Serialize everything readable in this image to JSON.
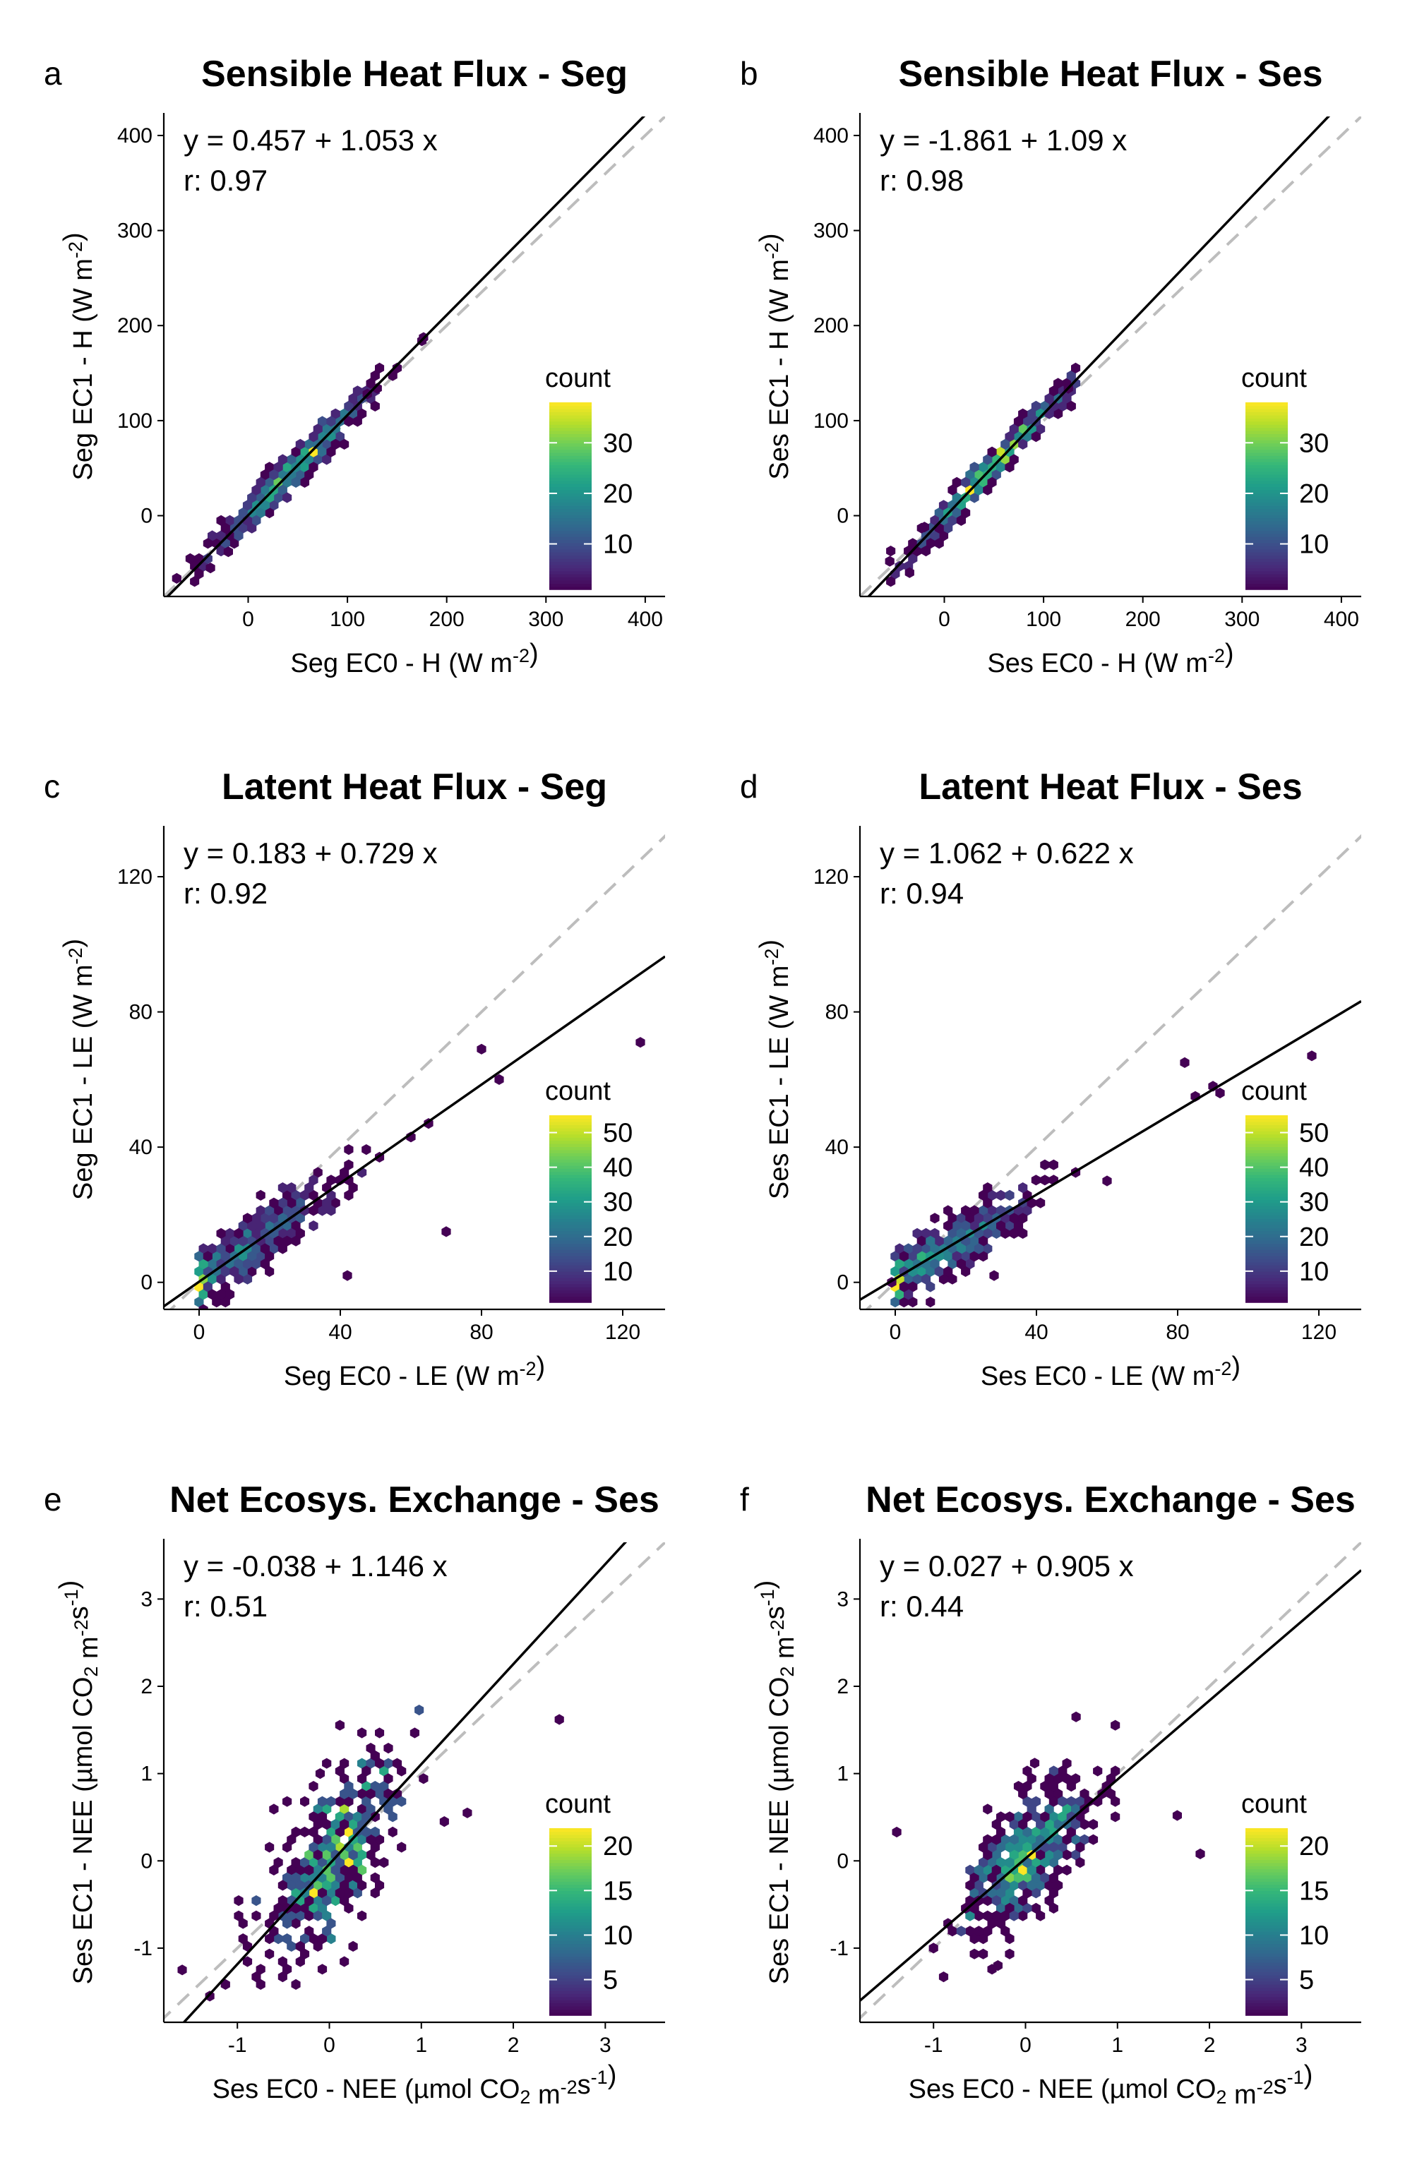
{
  "chart_data": [
    {
      "panel": "a",
      "type": "scatter",
      "title": "Sensible Heat Flux - Seg",
      "xlabel": "Seg EC0 - H (W m-2)",
      "ylabel": "Seg EC1 - H (W m-2)",
      "xlabel_parts": [
        "Seg EC0 - H (W m",
        "-2",
        ")"
      ],
      "ylabel_parts": [
        "Seg EC1 - H (W m",
        "-2",
        ")"
      ],
      "xlim": [
        -85,
        420
      ],
      "ylim": [
        -85,
        420
      ],
      "xticks": [
        0,
        100,
        200,
        300,
        400
      ],
      "yticks": [
        0,
        100,
        200,
        300,
        400
      ],
      "equation": "y =  0.457 + 1.053 x",
      "r_text": "r:  0.97",
      "fit": {
        "intercept": 0.457,
        "slope": 1.053
      },
      "identity_line": true,
      "legend": {
        "title": "count",
        "ticks": [
          10,
          20,
          30
        ],
        "max": 38
      },
      "cloud": {
        "x_center": 45,
        "x_spread": 40,
        "y_noise": 9,
        "x_min": -70,
        "x_max": 175,
        "n": 420,
        "peak": 38
      },
      "points": [
        [
          -72,
          -66
        ],
        [
          -38,
          -55
        ],
        [
          175,
          184
        ],
        [
          -20,
          -38
        ],
        [
          120,
          128
        ],
        [
          130,
          134
        ]
      ]
    },
    {
      "panel": "b",
      "type": "scatter",
      "title": "Sensible Heat Flux - Ses",
      "xlabel": "Ses EC0 - H (W m-2)",
      "ylabel": "Ses EC1 - H (W m-2)",
      "xlabel_parts": [
        "Ses EC0 - H (W m",
        "-2",
        ")"
      ],
      "ylabel_parts": [
        "Ses EC1 - H (W m",
        "-2",
        ")"
      ],
      "xlim": [
        -85,
        420
      ],
      "ylim": [
        -85,
        420
      ],
      "xticks": [
        0,
        100,
        200,
        300,
        400
      ],
      "yticks": [
        0,
        100,
        200,
        300,
        400
      ],
      "equation": "y =  -1.861 + 1.09 x",
      "r_text": "r:  0.98",
      "fit": {
        "intercept": -1.861,
        "slope": 1.09
      },
      "identity_line": true,
      "legend": {
        "title": "count",
        "ticks": [
          10,
          20,
          30
        ],
        "max": 38
      },
      "cloud": {
        "x_center": 45,
        "x_spread": 38,
        "y_noise": 8,
        "x_min": -55,
        "x_max": 130,
        "n": 420,
        "peak": 38
      },
      "points": [
        [
          -55,
          -48
        ],
        [
          -35,
          -60
        ],
        [
          125,
          134
        ],
        [
          -20,
          -12
        ]
      ]
    },
    {
      "panel": "c",
      "type": "scatter",
      "title": "Latent Heat Flux - Seg",
      "xlabel": "Seg EC0 - LE (W m-2)",
      "ylabel": "Seg EC1 - LE (W m-2)",
      "xlabel_parts": [
        "Seg EC0 - LE (W m",
        "-2",
        ")"
      ],
      "ylabel_parts": [
        "Seg EC1 - LE (W m",
        "-2",
        ")"
      ],
      "xlim": [
        -10,
        132
      ],
      "ylim": [
        -8,
        134
      ],
      "xticks": [
        0,
        40,
        80,
        120
      ],
      "yticks": [
        0,
        40,
        80,
        120
      ],
      "equation": "y =  0.183 + 0.729 x",
      "r_text": "r:  0.92",
      "fit": {
        "intercept": 0.183,
        "slope": 0.729
      },
      "identity_line": true,
      "legend": {
        "title": "count",
        "ticks": [
          10,
          20,
          30,
          40,
          50
        ],
        "max": 55
      },
      "cloud": {
        "x_center": 12,
        "x_spread": 14,
        "y_noise": 4.5,
        "x_min": 0,
        "x_max": 55,
        "n": 420,
        "peak": 55
      },
      "points": [
        [
          125,
          71
        ],
        [
          80,
          69
        ],
        [
          85,
          60
        ],
        [
          70,
          15
        ],
        [
          42,
          2
        ],
        [
          65,
          47
        ],
        [
          60,
          43
        ]
      ]
    },
    {
      "panel": "d",
      "type": "scatter",
      "title": "Latent Heat Flux - Ses",
      "xlabel": "Ses EC0 - LE (W m-2)",
      "ylabel": "Ses EC1 - LE (W m-2)",
      "xlabel_parts": [
        "Ses EC0 - LE (W m",
        "-2",
        ")"
      ],
      "ylabel_parts": [
        "Ses EC1 - LE (W m",
        "-2",
        ")"
      ],
      "xlim": [
        -10,
        132
      ],
      "ylim": [
        -8,
        134
      ],
      "xticks": [
        0,
        40,
        80,
        120
      ],
      "yticks": [
        0,
        40,
        80,
        120
      ],
      "equation": "y =  1.062 + 0.622 x",
      "r_text": "r:  0.94",
      "fit": {
        "intercept": 1.062,
        "slope": 0.622
      },
      "identity_line": true,
      "legend": {
        "title": "count",
        "ticks": [
          10,
          20,
          30,
          40,
          50
        ],
        "max": 55
      },
      "cloud": {
        "x_center": 14,
        "x_spread": 13,
        "y_noise": 4,
        "x_min": 0,
        "x_max": 55,
        "n": 420,
        "peak": 55
      },
      "points": [
        [
          118,
          67
        ],
        [
          82,
          65
        ],
        [
          90,
          58
        ],
        [
          92,
          56
        ],
        [
          85,
          55
        ],
        [
          28,
          2
        ],
        [
          -1,
          0
        ],
        [
          60,
          30
        ]
      ]
    },
    {
      "panel": "e",
      "type": "scatter",
      "title": "Net Ecosys. Exchange - Ses",
      "xlabel": "Ses EC0 - NEE (µmol CO2 m-2s-1)",
      "ylabel": "Ses EC1 - NEE (µmol CO2 m-2s-1)",
      "xlabel_parts": [
        "Ses EC0 - NEE (µmol CO",
        "2",
        " m",
        "-2",
        "s",
        "-1",
        ")"
      ],
      "ylabel_parts": [
        "Ses EC1 - NEE (µmol CO",
        "2",
        " m",
        "-2",
        "s",
        "-1",
        ")"
      ],
      "xlim": [
        -1.8,
        3.65
      ],
      "ylim": [
        -1.85,
        3.65
      ],
      "xticks": [
        -1,
        0,
        1,
        2,
        3
      ],
      "yticks": [
        -1,
        0,
        1,
        2,
        3
      ],
      "equation": "y =  -0.038 + 1.146 x",
      "r_text": "r:  0.51",
      "fit": {
        "intercept": -0.038,
        "slope": 1.146
      },
      "identity_line": true,
      "legend": {
        "title": "count",
        "ticks": [
          5,
          10,
          15,
          20
        ],
        "max": 22
      },
      "cloud": {
        "x_center": 0.05,
        "x_spread": 0.38,
        "y_noise": 0.42,
        "x_min": -1.6,
        "x_max": 1.6,
        "n": 420,
        "peak": 22
      },
      "points": [
        [
          2.5,
          1.62
        ],
        [
          -1.6,
          -1.25
        ],
        [
          -1.3,
          -1.55
        ],
        [
          1.5,
          0.55
        ],
        [
          1.25,
          0.45
        ],
        [
          -0.1,
          1.0
        ]
      ]
    },
    {
      "panel": "f",
      "type": "scatter",
      "title": "Net Ecosys. Exchange - Ses",
      "xlabel": "Ses EC0 - NEE (µmol CO2 m-2s-1)",
      "ylabel": "Ses EC1 - NEE (µmol CO2 m-2s-1)",
      "xlabel_parts": [
        "Ses EC0 - NEE (µmol CO",
        "2",
        " m",
        "-2",
        "s",
        "-1",
        ")"
      ],
      "ylabel_parts": [
        "Ses EC1 - NEE (µmol CO",
        "2",
        " m",
        "-2",
        "s",
        "-1",
        ")"
      ],
      "xlim": [
        -1.8,
        3.65
      ],
      "ylim": [
        -1.85,
        3.65
      ],
      "xticks": [
        -1,
        0,
        1,
        2,
        3
      ],
      "yticks": [
        -1,
        0,
        1,
        2,
        3
      ],
      "equation": "y =  0.027 + 0.905 x",
      "r_text": "r:  0.44",
      "fit": {
        "intercept": 0.027,
        "slope": 0.905
      },
      "identity_line": true,
      "legend": {
        "title": "count",
        "ticks": [
          5,
          10,
          15,
          20
        ],
        "max": 22
      },
      "cloud": {
        "x_center": 0.0,
        "x_spread": 0.33,
        "y_noise": 0.32,
        "x_min": -1.5,
        "x_max": 1.4,
        "n": 420,
        "peak": 22
      },
      "points": [
        [
          1.9,
          0.08
        ],
        [
          1.65,
          0.52
        ],
        [
          -1.0,
          -1.0
        ],
        [
          -0.3,
          -1.2
        ],
        [
          0.1,
          1.12
        ],
        [
          0.55,
          1.65
        ],
        [
          -1.4,
          0.33
        ]
      ]
    }
  ]
}
